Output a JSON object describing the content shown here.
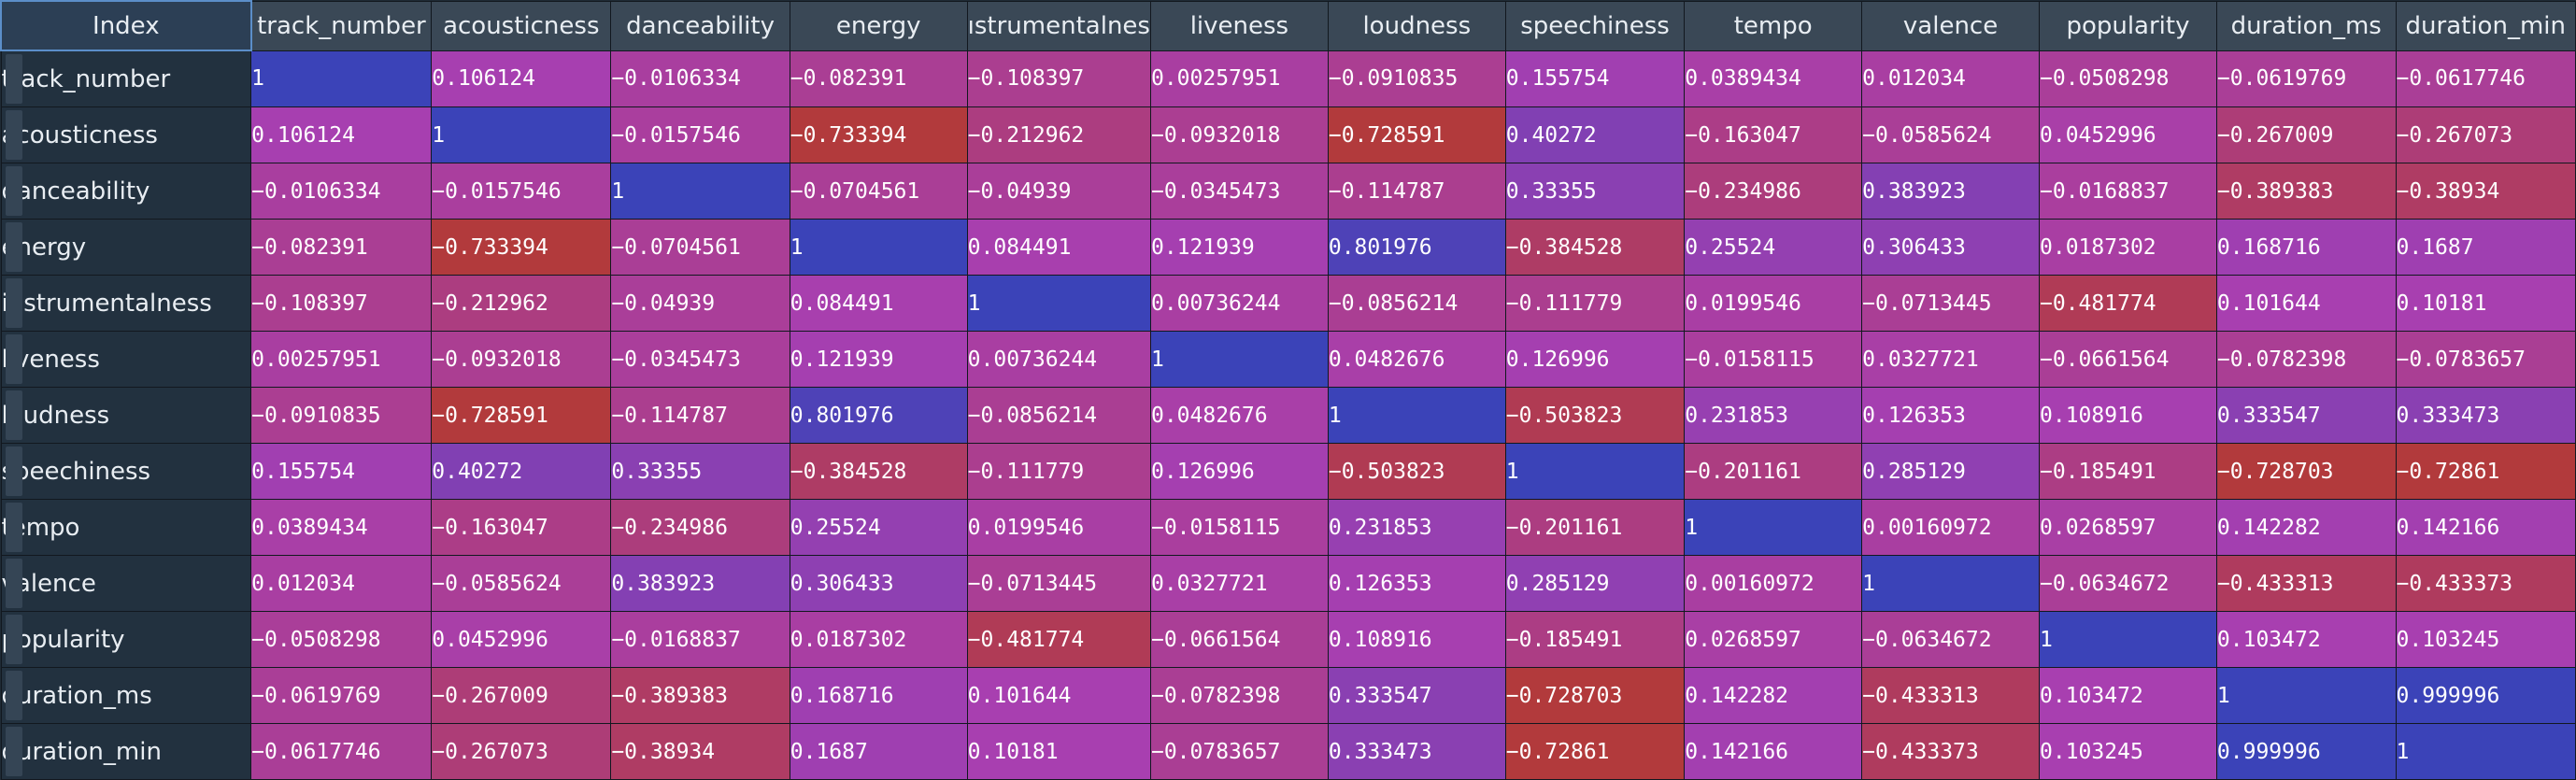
{
  "table": {
    "index_header": "Index",
    "columns": [
      "track_number",
      "acousticness",
      "danceability",
      "energy",
      "instrumentalness",
      "liveness",
      "loudness",
      "speechiness",
      "tempo",
      "valence",
      "popularity",
      "duration_ms",
      "duration_min"
    ],
    "column_labels": [
      "track_number",
      "acousticness",
      "danceability",
      "energy",
      "ıstrumentalnes",
      "liveness",
      "loudness",
      "speechiness",
      "tempo",
      "valence",
      "popularity",
      "duration_ms",
      "duration_min"
    ],
    "rows": [
      {
        "label": "track_number",
        "cells": [
          "1",
          "0.106124",
          "−0.0106334",
          "−0.082391",
          "−0.108397",
          "0.00257951",
          "−0.0910835",
          "0.155754",
          "0.0389434",
          "0.012034",
          "−0.0508298",
          "−0.0619769",
          "−0.0617746"
        ]
      },
      {
        "label": "acousticness",
        "cells": [
          "0.106124",
          "1",
          "−0.0157546",
          "−0.733394",
          "−0.212962",
          "−0.0932018",
          "−0.728591",
          "0.40272",
          "−0.163047",
          "−0.0585624",
          "0.0452996",
          "−0.267009",
          "−0.267073"
        ]
      },
      {
        "label": "danceability",
        "cells": [
          "−0.0106334",
          "−0.0157546",
          "1",
          "−0.0704561",
          "−0.04939",
          "−0.0345473",
          "−0.114787",
          "0.33355",
          "−0.234986",
          "0.383923",
          "−0.0168837",
          "−0.389383",
          "−0.38934"
        ]
      },
      {
        "label": "energy",
        "cells": [
          "−0.082391",
          "−0.733394",
          "−0.0704561",
          "1",
          "0.084491",
          "0.121939",
          "0.801976",
          "−0.384528",
          "0.25524",
          "0.306433",
          "0.0187302",
          "0.168716",
          "0.1687"
        ]
      },
      {
        "label": "instrumentalness",
        "cells": [
          "−0.108397",
          "−0.212962",
          "−0.04939",
          "0.084491",
          "1",
          "0.00736244",
          "−0.0856214",
          "−0.111779",
          "0.0199546",
          "−0.0713445",
          "−0.481774",
          "0.101644",
          "0.10181"
        ]
      },
      {
        "label": "liveness",
        "cells": [
          "0.00257951",
          "−0.0932018",
          "−0.0345473",
          "0.121939",
          "0.00736244",
          "1",
          "0.0482676",
          "0.126996",
          "−0.0158115",
          "0.0327721",
          "−0.0661564",
          "−0.0782398",
          "−0.0783657"
        ]
      },
      {
        "label": "loudness",
        "cells": [
          "−0.0910835",
          "−0.728591",
          "−0.114787",
          "0.801976",
          "−0.0856214",
          "0.0482676",
          "1",
          "−0.503823",
          "0.231853",
          "0.126353",
          "0.108916",
          "0.333547",
          "0.333473"
        ]
      },
      {
        "label": "speechiness",
        "cells": [
          "0.155754",
          "0.40272",
          "0.33355",
          "−0.384528",
          "−0.111779",
          "0.126996",
          "−0.503823",
          "1",
          "−0.201161",
          "0.285129",
          "−0.185491",
          "−0.728703",
          "−0.72861"
        ]
      },
      {
        "label": "tempo",
        "cells": [
          "0.0389434",
          "−0.163047",
          "−0.234986",
          "0.25524",
          "0.0199546",
          "−0.0158115",
          "0.231853",
          "−0.201161",
          "1",
          "0.00160972",
          "0.0268597",
          "0.142282",
          "0.142166"
        ]
      },
      {
        "label": "valence",
        "cells": [
          "0.012034",
          "−0.0585624",
          "0.383923",
          "0.306433",
          "−0.0713445",
          "0.0327721",
          "0.126353",
          "0.285129",
          "0.00160972",
          "1",
          "−0.0634672",
          "−0.433313",
          "−0.433373"
        ]
      },
      {
        "label": "popularity",
        "cells": [
          "−0.0508298",
          "0.0452996",
          "−0.0168837",
          "0.0187302",
          "−0.481774",
          "−0.0661564",
          "0.108916",
          "−0.185491",
          "0.0268597",
          "−0.0634672",
          "1",
          "0.103472",
          "0.103245"
        ]
      },
      {
        "label": "duration_ms",
        "cells": [
          "−0.0619769",
          "−0.267009",
          "−0.389383",
          "0.168716",
          "0.101644",
          "−0.0782398",
          "0.333547",
          "−0.728703",
          "0.142282",
          "−0.433313",
          "0.103472",
          "1",
          "0.999996"
        ]
      },
      {
        "label": "duration_min",
        "cells": [
          "−0.0617746",
          "−0.267073",
          "−0.38934",
          "0.1687",
          "0.10181",
          "−0.0783657",
          "0.333473",
          "−0.72861",
          "0.142166",
          "−0.433373",
          "0.103245",
          "0.999996",
          "1"
        ]
      }
    ]
  },
  "colors": {
    "high": "#3b43b8",
    "mid": "#a83fb0",
    "low": "#b23a3c",
    "header_bg": "#3a4856",
    "index_bg": "#22313f"
  }
}
